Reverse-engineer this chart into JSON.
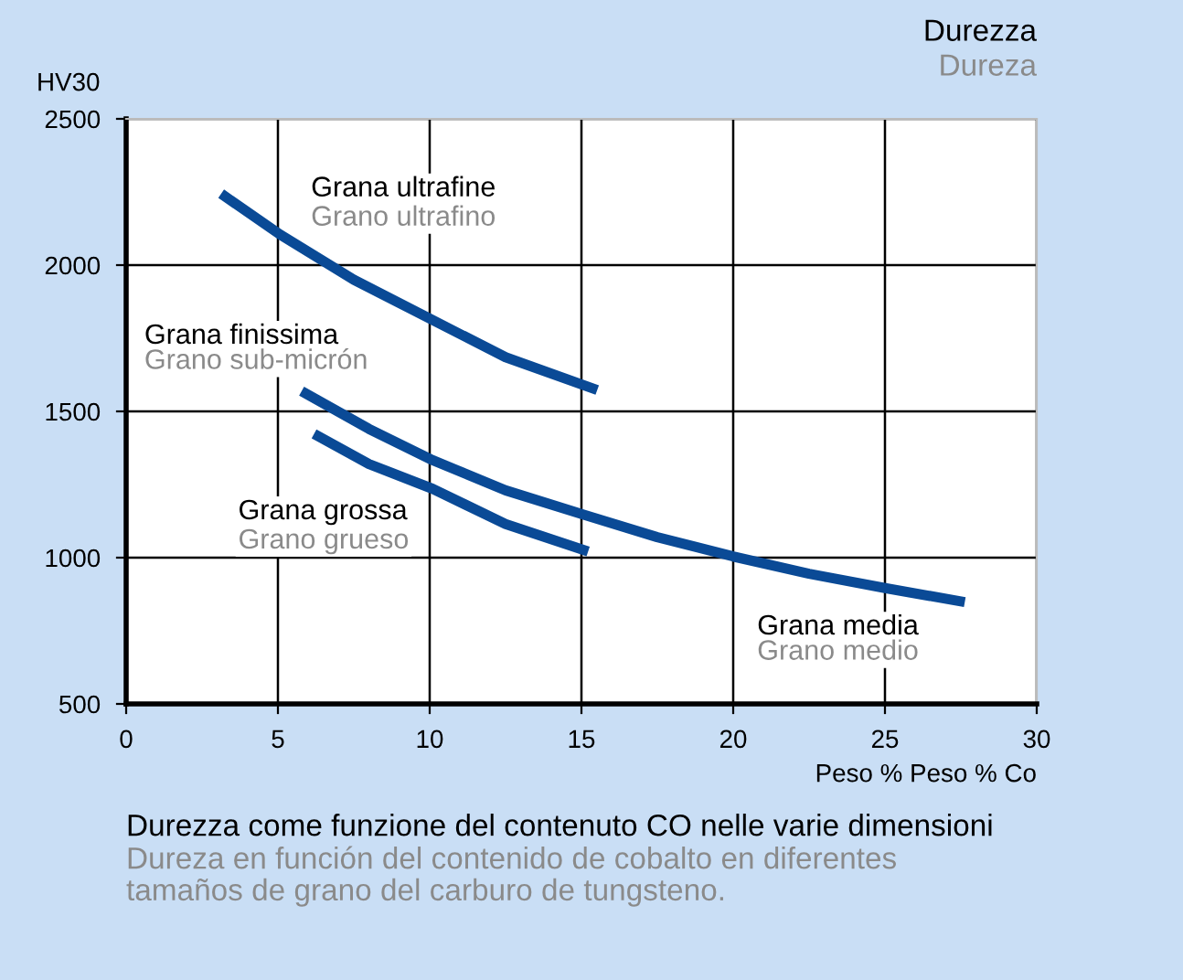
{
  "chart_data": {
    "type": "line",
    "title": "Durezza",
    "subtitle": "Dureza",
    "ylabel": "HV30",
    "xlabel": "Peso % Peso % Co",
    "xlim": [
      0,
      30
    ],
    "ylim": [
      500,
      2500
    ],
    "xticks": [
      0,
      5,
      10,
      15,
      20,
      25,
      30
    ],
    "yticks": [
      500,
      1000,
      1500,
      2000,
      2500
    ],
    "grid": true,
    "line_style": "solid",
    "marker": "none",
    "series": [
      {
        "color": "#0a4a96",
        "x": [
          3.13,
          5.08,
          7.5,
          10.1,
          12.5,
          15.52
        ],
        "values": [
          2244,
          2104,
          1950,
          1812,
          1685,
          1573
        ]
      },
      {
        "color": "#0a4a96",
        "x": [
          5.78,
          8,
          10.1,
          12.5,
          15.1,
          17.5,
          20,
          22.5,
          25,
          27.63
        ],
        "values": [
          1569,
          1440,
          1333,
          1230,
          1146,
          1070,
          1004,
          945,
          896,
          848
        ]
      },
      {
        "color": "#0a4a96",
        "x": [
          6.19,
          8,
          10.1,
          12.5,
          15.22
        ],
        "values": [
          1423,
          1320,
          1235,
          1115,
          1021
        ]
      }
    ],
    "annotations": [
      "Grana ultrafine",
      "Grano ultrafino",
      "Grana finissima",
      "Grano sub-micrón",
      "Grana grossa",
      "Grano grueso",
      "Grana media",
      "Grano medio",
      "Durezza come funzione del contenuto CO nelle varie dimensioni",
      "Dureza en función del contenido de cobalto en diferentes\ntamaños de grano del carburo de tungsteno."
    ]
  }
}
